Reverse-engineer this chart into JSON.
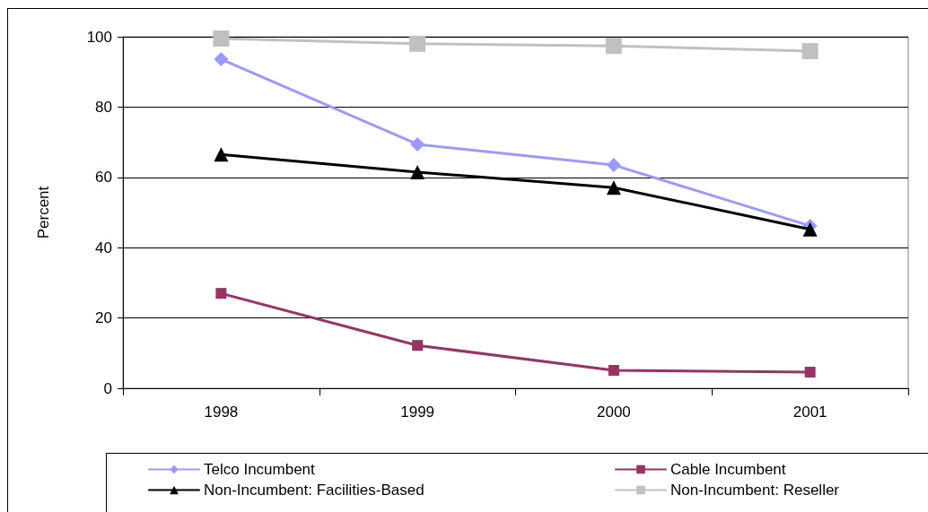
{
  "chart_data": {
    "type": "line",
    "categories": [
      "1998",
      "1999",
      "2000",
      "2001"
    ],
    "series": [
      {
        "name": "Telco Incumbent",
        "color": "#9999ff",
        "marker": "diamond",
        "values": [
          93.6,
          69.4,
          63.5,
          46.2
        ]
      },
      {
        "name": "Cable Incumbent",
        "color": "#993366",
        "marker": "square",
        "values": [
          27.0,
          12.2,
          5.1,
          4.6
        ]
      },
      {
        "name": "Non-Incumbent: Facilities-Based",
        "color": "#000000",
        "marker": "triangle",
        "values": [
          66.5,
          61.5,
          57.1,
          45.2
        ]
      },
      {
        "name": "Non-Incumbent: Reseller",
        "color": "#c0c0c0",
        "marker": "square",
        "values": [
          99.5,
          98.0,
          97.4,
          95.9
        ]
      }
    ],
    "ylabel": "Percent",
    "ylim": [
      0,
      100
    ],
    "yticks": [
      0,
      20,
      40,
      60,
      80,
      100
    ],
    "grid": "y",
    "legend": "bottom"
  }
}
